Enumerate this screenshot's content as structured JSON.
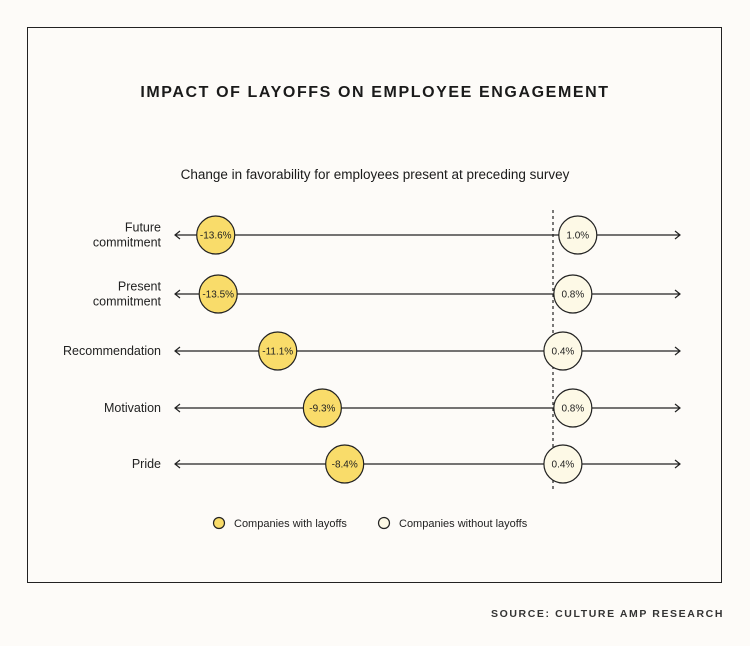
{
  "chart_data": {
    "type": "dot",
    "title": "IMPACT OF LAYOFFS ON EMPLOYEE ENGAGEMENT",
    "subtitle": "Change in favorability for employees present at preceding survey",
    "categories": [
      [
        "Future",
        "commitment"
      ],
      [
        "Present",
        "commitment"
      ],
      [
        "Recommendation"
      ],
      [
        "Motivation"
      ],
      [
        "Pride"
      ]
    ],
    "series": [
      {
        "name": "Companies with layoffs",
        "values": [
          -13.6,
          -13.5,
          -11.1,
          -9.3,
          -8.4
        ],
        "labels": [
          "-13.6%",
          "-13.5%",
          "-11.1%",
          "-9.3%",
          "-8.4%"
        ],
        "color": "#f9dc6a"
      },
      {
        "name": "Companies without layoffs",
        "values": [
          1.0,
          0.8,
          0.4,
          0.8,
          0.4
        ],
        "labels": [
          "1.0%",
          "0.8%",
          "0.4%",
          "0.8%",
          "0.4%"
        ],
        "color": "#fdf9e6"
      }
    ],
    "reference_line": 0,
    "legend": "bottom",
    "grid": false
  },
  "source": "SOURCE: CULTURE AMP RESEARCH"
}
